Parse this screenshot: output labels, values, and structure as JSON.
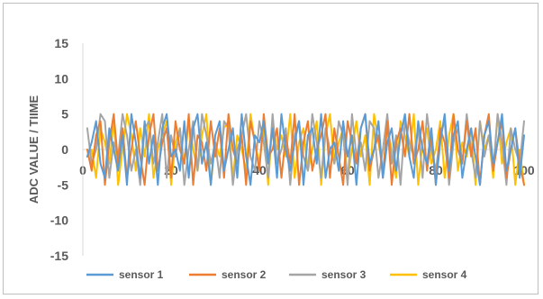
{
  "chart_data": {
    "type": "line",
    "title": "",
    "xlabel": "",
    "ylabel": "ADC VALUE / TIIME",
    "xlim": [
      0,
      100
    ],
    "ylim": [
      -15,
      15
    ],
    "x_ticks": [
      0,
      20,
      40,
      60,
      80,
      100
    ],
    "y_ticks": [
      15,
      10,
      5,
      0,
      -5,
      -10,
      -15
    ],
    "x_tick_labels": [
      "0",
      "20",
      "40",
      "60",
      "80",
      "100"
    ],
    "y_tick_labels": [
      "15",
      "10",
      "5",
      "0",
      "-5",
      "-10",
      "-15"
    ],
    "grid": false,
    "legend_position": "bottom",
    "x": [
      1,
      2,
      3,
      4,
      5,
      6,
      7,
      8,
      9,
      10,
      11,
      12,
      13,
      14,
      15,
      16,
      17,
      18,
      19,
      20,
      21,
      22,
      23,
      24,
      25,
      26,
      27,
      28,
      29,
      30,
      31,
      32,
      33,
      34,
      35,
      36,
      37,
      38,
      39,
      40,
      41,
      42,
      43,
      44,
      45,
      46,
      47,
      48,
      49,
      50,
      51,
      52,
      53,
      54,
      55,
      56,
      57,
      58,
      59,
      60,
      61,
      62,
      63,
      64,
      65,
      66,
      67,
      68,
      69,
      70,
      71,
      72,
      73,
      74,
      75,
      76,
      77,
      78,
      79,
      80,
      81,
      82,
      83,
      84,
      85,
      86,
      87,
      88,
      89,
      90,
      91,
      92,
      93,
      94,
      95,
      96,
      97,
      98,
      99,
      100
    ],
    "series": [
      {
        "name": "sensor 1",
        "color": "#5b9bd5",
        "values": [
          -1,
          1,
          4,
          -2,
          -4,
          3,
          0,
          -3,
          2,
          -5,
          5,
          1,
          -4,
          4,
          -2,
          2,
          -5,
          3,
          5,
          -1,
          0,
          -3,
          4,
          -4,
          3,
          5,
          -2,
          1,
          -5,
          2,
          4,
          -3,
          0,
          3,
          -4,
          5,
          -1,
          -5,
          2,
          1,
          4,
          -2,
          3,
          -4,
          5,
          0,
          -3,
          1,
          4,
          -5,
          2,
          3,
          -2,
          5,
          -4,
          0,
          1,
          -3,
          4,
          -1,
          2,
          -5,
          3,
          5,
          -2,
          0,
          4,
          -4,
          1,
          3,
          -3,
          2,
          5,
          -1,
          -4,
          4,
          0,
          -2,
          3,
          -5,
          1,
          5,
          -3,
          2,
          4,
          -4,
          0,
          3,
          -1,
          -5,
          2,
          4,
          -2,
          1,
          5,
          -3,
          0,
          3,
          -4,
          2
        ]
      },
      {
        "name": "sensor 2",
        "color": "#ed7d31",
        "values": [
          0,
          -3,
          2,
          4,
          -5,
          1,
          5,
          -2,
          3,
          -4,
          0,
          4,
          -1,
          -5,
          2,
          5,
          -3,
          1,
          3,
          -4,
          4,
          0,
          -2,
          5,
          -5,
          2,
          1,
          -3,
          4,
          -1,
          3,
          -4,
          5,
          0,
          -2,
          2,
          -5,
          4,
          1,
          -3,
          5,
          -1,
          0,
          3,
          -4,
          2,
          -2,
          5,
          -5,
          1,
          4,
          -3,
          0,
          2,
          5,
          -4,
          3,
          -1,
          -5,
          4,
          1,
          -2,
          3,
          5,
          -3,
          0,
          2,
          -4,
          4,
          -5,
          1,
          3,
          -1,
          5,
          -2,
          0,
          4,
          -3,
          2,
          -5,
          3,
          1,
          -4,
          5,
          0,
          -2,
          4,
          -1,
          3,
          -5,
          2,
          5,
          -3,
          1,
          4,
          -4,
          0,
          3,
          -2,
          -5
        ]
      },
      {
        "name": "sensor 3",
        "color": "#a5a5a5",
        "values": [
          3,
          -2,
          0,
          5,
          4,
          -4,
          1,
          -1,
          5,
          2,
          -3,
          0,
          -5,
          3,
          4,
          -2,
          1,
          5,
          -4,
          2,
          -1,
          3,
          -5,
          0,
          4,
          -3,
          5,
          2,
          -2,
          1,
          -4,
          4,
          3,
          -5,
          0,
          2,
          5,
          -1,
          -3,
          4,
          1,
          -4,
          5,
          -2,
          0,
          3,
          -5,
          2,
          4,
          -1,
          -3,
          5,
          1,
          -4,
          3,
          0,
          -2,
          4,
          2,
          -5,
          5,
          -1,
          1,
          -3,
          4,
          3,
          -4,
          0,
          5,
          -2,
          2,
          -5,
          4,
          1,
          -1,
          3,
          -4,
          5,
          0,
          -3,
          2,
          4,
          -5,
          1,
          3,
          -2,
          5,
          0,
          -4,
          4,
          -1,
          2,
          -3,
          5,
          1,
          -5,
          3,
          0,
          -2,
          4
        ]
      },
      {
        "name": "sensor 4",
        "color": "#ffc000",
        "values": [
          -1,
          0,
          -4,
          3,
          1,
          -2,
          4,
          -5,
          0,
          5,
          2,
          -3,
          3,
          -1,
          5,
          -4,
          0,
          2,
          4,
          -5,
          1,
          3,
          -2,
          4,
          0,
          -3,
          2,
          5,
          -5,
          1,
          -1,
          3,
          4,
          -4,
          2,
          0,
          -3,
          5,
          1,
          -2,
          3,
          -5,
          4,
          0,
          2,
          -1,
          5,
          -4,
          1,
          3,
          -3,
          0,
          4,
          -5,
          2,
          5,
          -2,
          1,
          3,
          -4,
          0,
          4,
          -1,
          2,
          -5,
          5,
          1,
          -3,
          3,
          0,
          -4,
          4,
          2,
          -1,
          5,
          -5,
          1,
          3,
          -2,
          0,
          4,
          -4,
          2,
          5,
          -3,
          1,
          -1,
          3,
          -5,
          4,
          0,
          2,
          -4,
          5,
          -2,
          1,
          3,
          -5,
          0,
          -5
        ]
      }
    ]
  }
}
